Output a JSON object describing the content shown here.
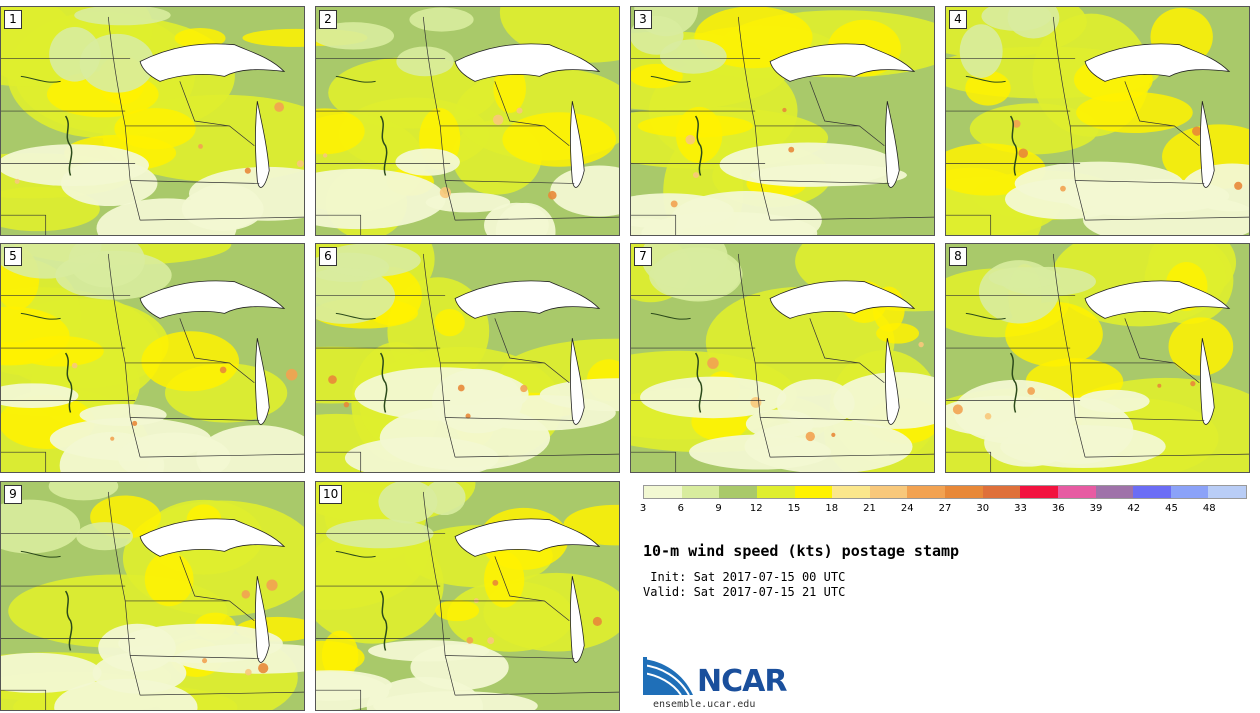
{
  "panels": [
    {
      "label": "1"
    },
    {
      "label": "2"
    },
    {
      "label": "3"
    },
    {
      "label": "4"
    },
    {
      "label": "5"
    },
    {
      "label": "6"
    },
    {
      "label": "7"
    },
    {
      "label": "8"
    },
    {
      "label": "9"
    },
    {
      "label": "10"
    }
  ],
  "legend": {
    "colors": [
      "#f2f8d2",
      "#d8ec9e",
      "#a9c96a",
      "#dfee2e",
      "#fff200",
      "#fbe78c",
      "#f8c87b",
      "#f2a251",
      "#e88838",
      "#df703a",
      "#f2123f",
      "#e75ba2",
      "#9f72a9",
      "#6b6df5",
      "#8ba2f8",
      "#b9cdf6"
    ],
    "tick_labels": [
      "3",
      "6",
      "9",
      "12",
      "15",
      "18",
      "21",
      "24",
      "27",
      "30",
      "33",
      "36",
      "39",
      "42",
      "45",
      "48"
    ]
  },
  "title": "10-m wind speed (kts) postage stamp",
  "init": " Init: Sat 2017-07-15 00 UTC",
  "valid": "Valid: Sat 2017-07-15 21 UTC",
  "logo": {
    "text": "NCAR",
    "site": "ensemble.ucar.edu"
  }
}
